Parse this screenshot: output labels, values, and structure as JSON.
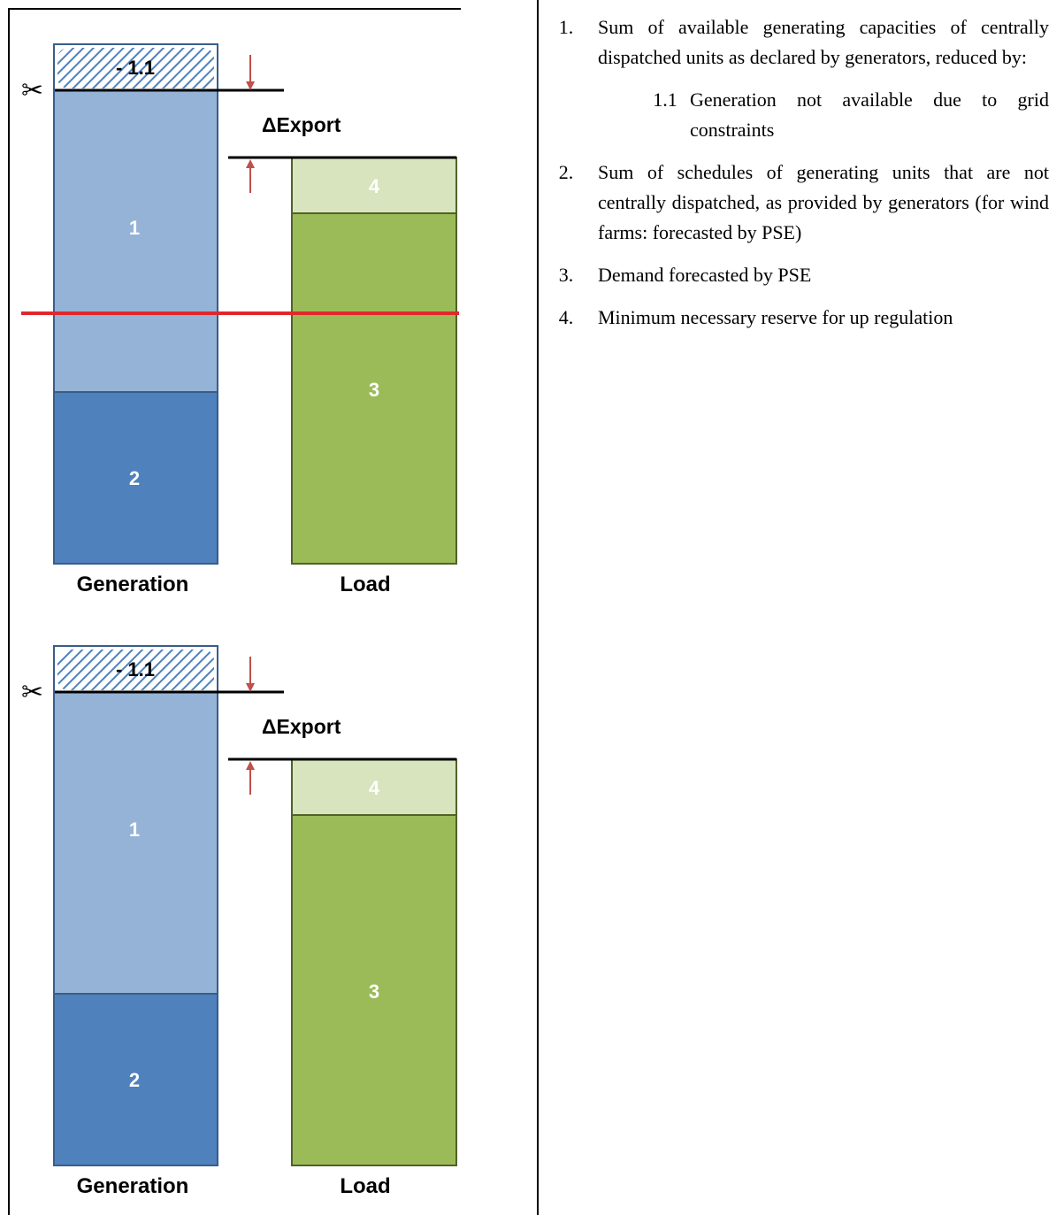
{
  "diagrams": [
    {
      "generation_label": "Generation",
      "load_label": "Load",
      "delta_label": "ΔExport",
      "hatch_label": "- 1.1",
      "seg_gen_top": "1",
      "seg_gen_bottom": "2",
      "seg_load_reserve": "4",
      "seg_load_demand": "3",
      "scissors_icon": "✂",
      "show_red_line": true
    },
    {
      "generation_label": "Generation",
      "load_label": "Load",
      "delta_label": "ΔExport",
      "hatch_label": "- 1.1",
      "seg_gen_top": "1",
      "seg_gen_bottom": "2",
      "seg_load_reserve": "4",
      "seg_load_demand": "3",
      "scissors_icon": "✂",
      "show_red_line": false
    }
  ],
  "colors": {
    "gen_light": "#95b3d7",
    "gen_dark": "#4f81bd",
    "gen_border": "#385d8a",
    "load_green": "#9bbb59",
    "load_light": "#d7e4bd",
    "load_border": "#4f6228",
    "arrow_red": "#c0504d",
    "threshold_red": "#e0282c"
  },
  "legend": {
    "item1_num": "1.",
    "item1_text": "Sum of available generating capacities of centrally dispatched units as declared by generators, reduced by:",
    "item11_num": "1.1",
    "item11_text": "Generation not available due to grid constraints",
    "item2_num": "2.",
    "item2_text": "Sum of schedules of generating units that are not centrally dispatched, as provided by generators (for wind farms: forecasted by PSE)",
    "item3_num": "3.",
    "item3_text": "Demand forecasted by PSE",
    "item4_num": "4.",
    "item4_text": "Minimum necessary reserve for up regulation"
  }
}
